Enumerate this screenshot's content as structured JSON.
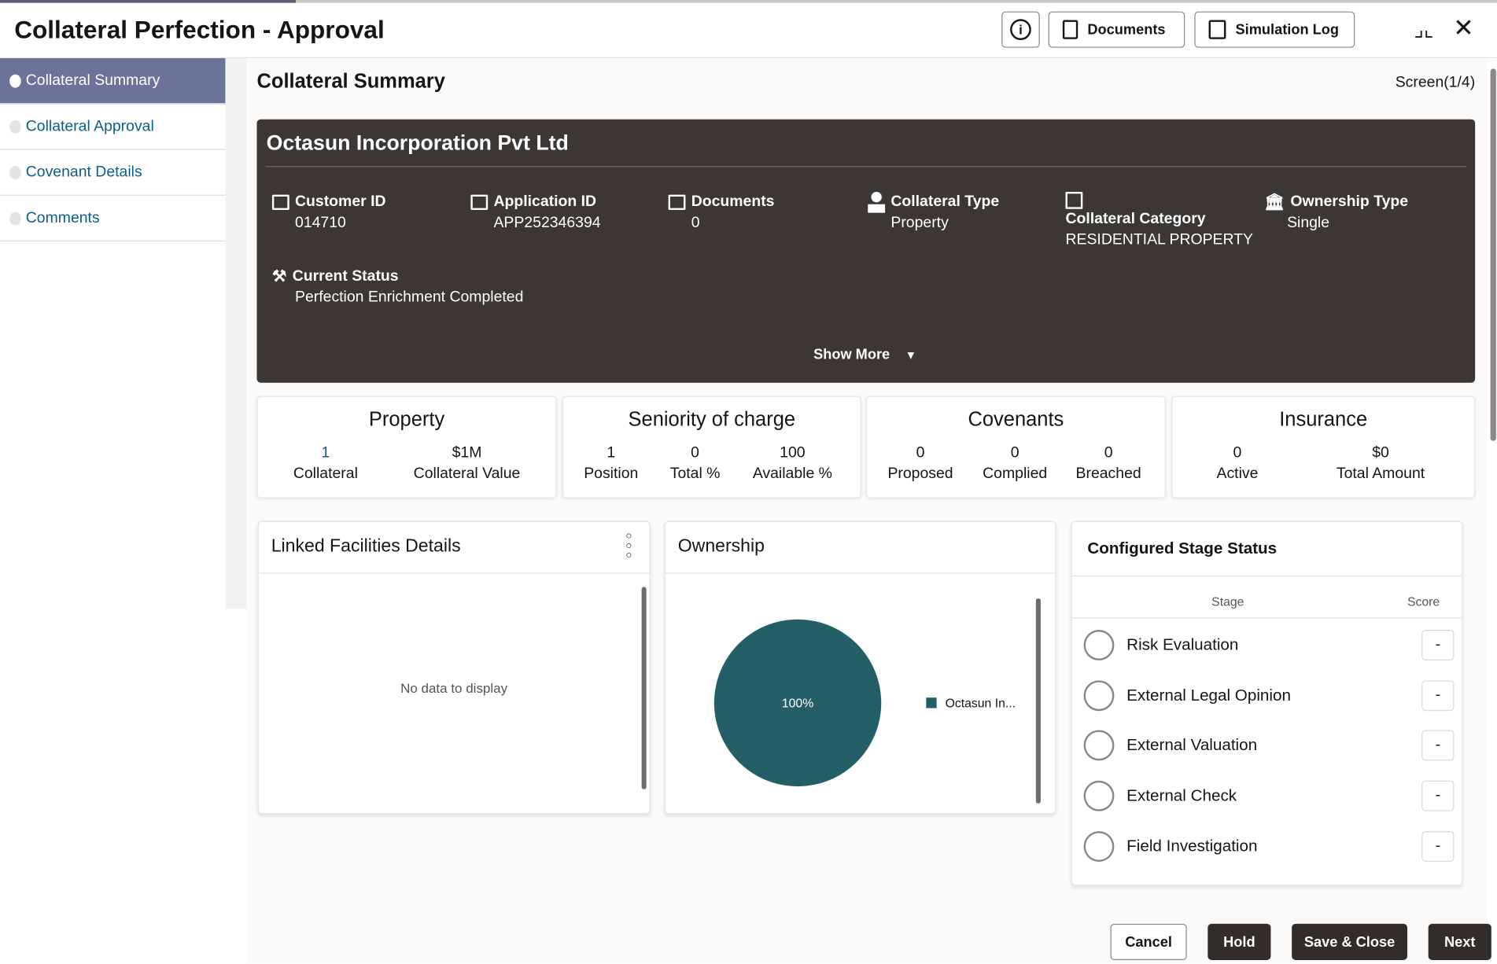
{
  "header": {
    "title": "Collateral Perfection - Approval",
    "documents_label": "Documents",
    "simulation_log_label": "Simulation Log"
  },
  "sidebar": {
    "items": [
      {
        "label": "Collateral Summary"
      },
      {
        "label": "Collateral Approval"
      },
      {
        "label": "Covenant Details"
      },
      {
        "label": "Comments"
      }
    ]
  },
  "main": {
    "title": "Collateral Summary",
    "screen": "Screen(1/4)"
  },
  "summary": {
    "name": "Octasun Incorporation Pvt Ltd",
    "fields": [
      {
        "label": "Customer ID",
        "value": "014710"
      },
      {
        "label": "Application ID",
        "value": "APP252346394"
      },
      {
        "label": "Documents",
        "value": "0"
      },
      {
        "label": "Collateral Type",
        "value": "Property"
      },
      {
        "label": "Collateral Category",
        "value": "RESIDENTIAL PROPERTY"
      },
      {
        "label": "Ownership Type",
        "value": "Single"
      },
      {
        "label": "Current Status",
        "value": "Perfection Enrichment Completed"
      }
    ],
    "show_more": "Show More"
  },
  "cards": [
    {
      "title": "Property",
      "stats": [
        {
          "value": "1",
          "label": "Collateral"
        },
        {
          "value": "$1M",
          "label": "Collateral Value"
        }
      ]
    },
    {
      "title": "Seniority of charge",
      "stats": [
        {
          "value": "1",
          "label": "Position"
        },
        {
          "value": "0",
          "label": "Total %"
        },
        {
          "value": "100",
          "label": "Available %"
        }
      ]
    },
    {
      "title": "Covenants",
      "stats": [
        {
          "value": "0",
          "label": "Proposed"
        },
        {
          "value": "0",
          "label": "Complied"
        },
        {
          "value": "0",
          "label": "Breached"
        }
      ]
    },
    {
      "title": "Insurance",
      "stats": [
        {
          "value": "0",
          "label": "Active"
        },
        {
          "value": "$0",
          "label": "Total Amount"
        }
      ]
    }
  ],
  "linked_facilities": {
    "title": "Linked Facilities Details",
    "empty": "No data to display"
  },
  "ownership": {
    "title": "Ownership",
    "slice_label": "100%",
    "legend": "Octasun In...",
    "slice_percent": 100,
    "color": "#245f67"
  },
  "stage_status": {
    "title": "Configured Stage Status",
    "col_stage": "Stage",
    "col_score": "Score",
    "rows": [
      {
        "stage": "Risk Evaluation",
        "score": "-"
      },
      {
        "stage": "External Legal Opinion",
        "score": "-"
      },
      {
        "stage": "External Valuation",
        "score": "-"
      },
      {
        "stage": "External Check",
        "score": "-"
      },
      {
        "stage": "Field Investigation",
        "score": "-"
      }
    ]
  },
  "footer": {
    "cancel": "Cancel",
    "hold": "Hold",
    "save_close": "Save & Close",
    "next": "Next"
  }
}
